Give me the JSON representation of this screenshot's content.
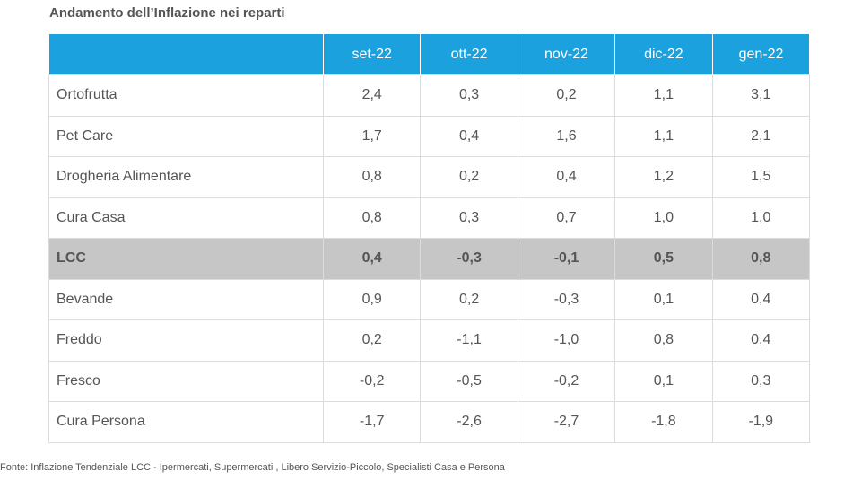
{
  "title": "Andamento dell’Inflazione nei reparti",
  "source": "Fonte: Inflazione Tendenziale LCC  -  Ipermercati, Supermercati , Libero Servizio-Piccolo, Specialisti Casa e Persona",
  "colors": {
    "header_bg": "#1ba1dd",
    "highlight_bg": "#c6c6c6",
    "text": "#555555"
  },
  "chart_data": {
    "type": "table",
    "title": "Andamento dell’Inflazione nei reparti",
    "columns": [
      "set-22",
      "ott-22",
      "nov-22",
      "dic-22",
      "gen-22"
    ],
    "highlighted_row": "LCC",
    "rows": [
      {
        "label": "Ortofrutta",
        "values": [
          "2,4",
          "0,3",
          "0,2",
          "1,1",
          "3,1"
        ]
      },
      {
        "label": "Pet Care",
        "values": [
          "1,7",
          "0,4",
          "1,6",
          "1,1",
          "2,1"
        ]
      },
      {
        "label": "Drogheria Alimentare",
        "values": [
          "0,8",
          "0,2",
          "0,4",
          "1,2",
          "1,5"
        ]
      },
      {
        "label": "Cura Casa",
        "values": [
          "0,8",
          "0,3",
          "0,7",
          "1,0",
          "1,0"
        ]
      },
      {
        "label": "LCC",
        "values": [
          "0,4",
          "-0,3",
          "-0,1",
          "0,5",
          "0,8"
        ]
      },
      {
        "label": "Bevande",
        "values": [
          "0,9",
          "0,2",
          "-0,3",
          "0,1",
          "0,4"
        ]
      },
      {
        "label": "Freddo",
        "values": [
          "0,2",
          "-1,1",
          "-1,0",
          "0,8",
          "0,4"
        ]
      },
      {
        "label": "Fresco",
        "values": [
          "-0,2",
          "-0,5",
          "-0,2",
          "0,1",
          "0,3"
        ]
      },
      {
        "label": "Cura Persona",
        "values": [
          "-1,7",
          "-2,6",
          "-2,7",
          "-1,8",
          "-1,9"
        ]
      }
    ]
  }
}
